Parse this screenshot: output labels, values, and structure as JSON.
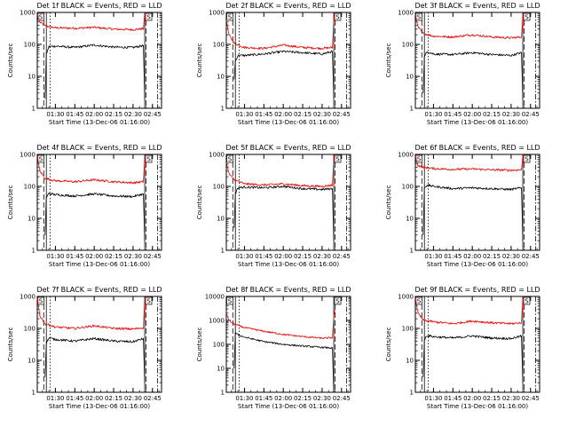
{
  "page": {
    "background": "#ffffff"
  },
  "colors": {
    "events": "#000000",
    "lld": "#ff0000",
    "axis": "#000000"
  },
  "chart_data": [
    {
      "type": "line",
      "title": "Det 1f BLACK = Events, RED = LLD",
      "ylabel": "Counts/sec",
      "xlabel": "Start Time (13-Dec-06 01:16:00)",
      "yscale": "log",
      "ylim": [
        1,
        1000
      ],
      "xlim": [
        "01:16",
        "02:52"
      ],
      "xticks": [
        "01:30",
        "01:45",
        "02:00",
        "02:15",
        "02:30",
        "02:45"
      ],
      "yticks": [
        "1",
        "10",
        "100",
        "1000"
      ],
      "markers": [
        "S",
        "S"
      ],
      "series": [
        {
          "color": "#ff0000",
          "x": [
            "01:16",
            "01:18",
            "01:22",
            "01:30",
            "01:45",
            "02:00",
            "02:15",
            "02:30",
            "02:38",
            "02:39",
            "02:40"
          ],
          "y": [
            900,
            500,
            380,
            330,
            320,
            340,
            300,
            290,
            310,
            900,
            1000
          ]
        },
        {
          "color": "#000000",
          "x": [
            "01:22",
            "01:23",
            "01:25",
            "01:30",
            "01:45",
            "02:00",
            "02:15",
            "02:30",
            "02:38",
            "02:39"
          ],
          "y": [
            2,
            50,
            85,
            88,
            80,
            95,
            82,
            80,
            92,
            2
          ]
        }
      ]
    },
    {
      "type": "line",
      "title": "Det 2f BLACK = Events, RED = LLD",
      "ylabel": "Counts/sec",
      "xlabel": "Start Time (13-Dec-06 01:16:00)",
      "yscale": "log",
      "ylim": [
        1,
        1000
      ],
      "xlim": [
        "01:16",
        "02:52"
      ],
      "xticks": [
        "01:30",
        "01:45",
        "02:00",
        "02:15",
        "02:30",
        "02:45"
      ],
      "yticks": [
        "1",
        "10",
        "100",
        "1000"
      ],
      "markers": [
        "S",
        "S"
      ],
      "series": [
        {
          "color": "#ff0000",
          "x": [
            "01:16",
            "01:18",
            "01:22",
            "01:30",
            "01:45",
            "02:00",
            "02:15",
            "02:30",
            "02:38",
            "02:39",
            "02:40"
          ],
          "y": [
            600,
            200,
            110,
            80,
            75,
            95,
            80,
            75,
            80,
            600,
            1000
          ]
        },
        {
          "color": "#000000",
          "x": [
            "01:22",
            "01:23",
            "01:25",
            "01:30",
            "01:45",
            "02:00",
            "02:15",
            "02:30",
            "02:38",
            "02:39"
          ],
          "y": [
            8,
            30,
            45,
            45,
            50,
            60,
            55,
            50,
            60,
            2
          ]
        }
      ]
    },
    {
      "type": "line",
      "title": "Det 3f BLACK = Events, RED = LLD",
      "ylabel": "Counts/sec",
      "xlabel": "Start Time (13-Dec-06 01:16:00)",
      "yscale": "log",
      "ylim": [
        1,
        1000
      ],
      "xlim": [
        "01:16",
        "02:52"
      ],
      "xticks": [
        "01:30",
        "01:45",
        "02:00",
        "02:15",
        "02:30",
        "02:45"
      ],
      "yticks": [
        "1",
        "10",
        "100",
        "1000"
      ],
      "markers": [
        "S",
        "S"
      ],
      "series": [
        {
          "color": "#ff0000",
          "x": [
            "01:16",
            "01:18",
            "01:22",
            "01:30",
            "01:45",
            "02:00",
            "02:15",
            "02:30",
            "02:38",
            "02:39",
            "02:40"
          ],
          "y": [
            900,
            350,
            220,
            180,
            170,
            200,
            170,
            160,
            170,
            800,
            1000
          ]
        },
        {
          "color": "#000000",
          "x": [
            "01:22",
            "01:23",
            "01:25",
            "01:30",
            "01:45",
            "02:00",
            "02:15",
            "02:30",
            "02:38",
            "02:39"
          ],
          "y": [
            3,
            40,
            60,
            50,
            48,
            55,
            48,
            45,
            55,
            2
          ]
        }
      ]
    },
    {
      "type": "line",
      "title": "Det 4f BLACK = Events, RED = LLD",
      "ylabel": "Counts/sec",
      "xlabel": "Start Time (13-Dec-06 01:16:00)",
      "yscale": "log",
      "ylim": [
        1,
        1000
      ],
      "xlim": [
        "01:16",
        "02:52"
      ],
      "xticks": [
        "01:30",
        "01:45",
        "02:00",
        "02:15",
        "02:30",
        "02:45"
      ],
      "yticks": [
        "1",
        "10",
        "100",
        "1000"
      ],
      "markers": [
        "S",
        "S"
      ],
      "series": [
        {
          "color": "#ff0000",
          "x": [
            "01:16",
            "01:18",
            "01:22",
            "01:30",
            "01:45",
            "02:00",
            "02:15",
            "02:30",
            "02:38",
            "02:39",
            "02:40"
          ],
          "y": [
            900,
            300,
            180,
            150,
            140,
            160,
            140,
            130,
            140,
            800,
            1000
          ]
        },
        {
          "color": "#000000",
          "x": [
            "01:22",
            "01:23",
            "01:25",
            "01:30",
            "01:45",
            "02:00",
            "02:15",
            "02:30",
            "02:38",
            "02:39"
          ],
          "y": [
            3,
            45,
            60,
            55,
            50,
            58,
            50,
            48,
            58,
            2
          ]
        }
      ]
    },
    {
      "type": "line",
      "title": "Det 5f BLACK = Events, RED = LLD",
      "ylabel": "Counts/sec",
      "xlabel": "Start Time (13-Dec-06 01:16:00)",
      "yscale": "log",
      "ylim": [
        1,
        1000
      ],
      "xlim": [
        "01:16",
        "02:52"
      ],
      "xticks": [
        "01:30",
        "01:45",
        "02:00",
        "02:15",
        "02:30",
        "02:45"
      ],
      "yticks": [
        "1",
        "10",
        "100",
        "1000"
      ],
      "markers": [
        "S",
        "S"
      ],
      "series": [
        {
          "color": "#ff0000",
          "x": [
            "01:16",
            "01:18",
            "01:22",
            "01:30",
            "01:45",
            "02:00",
            "02:15",
            "02:30",
            "02:38",
            "02:39",
            "02:40"
          ],
          "y": [
            600,
            250,
            160,
            120,
            110,
            120,
            105,
            100,
            110,
            700,
            1000
          ]
        },
        {
          "color": "#000000",
          "x": [
            "01:22",
            "01:23",
            "01:25",
            "01:30",
            "01:45",
            "02:00",
            "02:15",
            "02:30",
            "02:38",
            "02:39"
          ],
          "y": [
            5,
            60,
            90,
            95,
            90,
            100,
            85,
            80,
            85,
            2
          ]
        }
      ]
    },
    {
      "type": "line",
      "title": "Det 6f BLACK = Events, RED = LLD",
      "ylabel": "Counts/sec",
      "xlabel": "Start Time (13-Dec-06 01:16:00)",
      "yscale": "log",
      "ylim": [
        1,
        1000
      ],
      "xlim": [
        "01:16",
        "02:52"
      ],
      "xticks": [
        "01:30",
        "01:45",
        "02:00",
        "02:15",
        "02:30",
        "02:45"
      ],
      "yticks": [
        "1",
        "10",
        "100",
        "1000"
      ],
      "markers": [
        "S",
        "S"
      ],
      "series": [
        {
          "color": "#ff0000",
          "x": [
            "01:16",
            "01:18",
            "01:22",
            "01:30",
            "01:45",
            "02:00",
            "02:15",
            "02:30",
            "02:38",
            "02:39",
            "02:40"
          ],
          "y": [
            900,
            450,
            400,
            360,
            340,
            350,
            330,
            320,
            330,
            900,
            1000
          ]
        },
        {
          "color": "#000000",
          "x": [
            "01:22",
            "01:23",
            "01:25",
            "01:30",
            "01:45",
            "02:00",
            "02:15",
            "02:30",
            "02:38",
            "02:39"
          ],
          "y": [
            3,
            90,
            110,
            100,
            85,
            90,
            85,
            80,
            90,
            2
          ]
        }
      ]
    },
    {
      "type": "line",
      "title": "Det 7f BLACK = Events, RED = LLD",
      "ylabel": "Counts/sec",
      "xlabel": "Start Time (13-Dec-06 01:16:00)",
      "yscale": "log",
      "ylim": [
        1,
        1000
      ],
      "xlim": [
        "01:16",
        "02:52"
      ],
      "xticks": [
        "01:30",
        "01:45",
        "02:00",
        "02:15",
        "02:30",
        "02:45"
      ],
      "yticks": [
        "1",
        "10",
        "100",
        "1000"
      ],
      "markers": [
        "S",
        "S"
      ],
      "series": [
        {
          "color": "#ff0000",
          "x": [
            "01:16",
            "01:18",
            "01:22",
            "01:30",
            "01:45",
            "02:00",
            "02:15",
            "02:30",
            "02:38",
            "02:39",
            "02:40"
          ],
          "y": [
            900,
            250,
            140,
            110,
            100,
            120,
            100,
            95,
            105,
            800,
            1000
          ]
        },
        {
          "color": "#000000",
          "x": [
            "01:22",
            "01:23",
            "01:25",
            "01:30",
            "01:45",
            "02:00",
            "02:15",
            "02:30",
            "02:38",
            "02:39"
          ],
          "y": [
            3,
            35,
            50,
            45,
            40,
            48,
            40,
            38,
            48,
            2
          ]
        }
      ]
    },
    {
      "type": "line",
      "title": "Det 8f BLACK = Events, RED = LLD",
      "ylabel": "Counts/sec",
      "xlabel": "Start Time (13-Dec-06 01:16:00)",
      "yscale": "log",
      "ylim": [
        1,
        10000
      ],
      "xlim": [
        "01:16",
        "02:52"
      ],
      "xticks": [
        "01:30",
        "01:45",
        "02:00",
        "02:15",
        "02:30",
        "02:45"
      ],
      "yticks": [
        "1",
        "10",
        "100",
        "1000",
        "10000"
      ],
      "markers": [
        "S",
        "S"
      ],
      "series": [
        {
          "color": "#ff0000",
          "x": [
            "01:16",
            "01:18",
            "01:22",
            "01:30",
            "01:45",
            "02:00",
            "02:15",
            "02:30",
            "02:38",
            "02:39",
            "02:40"
          ],
          "y": [
            2000,
            1000,
            700,
            500,
            350,
            260,
            210,
            180,
            190,
            1500,
            3000
          ]
        },
        {
          "color": "#000000",
          "x": [
            "01:22",
            "01:23",
            "01:25",
            "01:30",
            "01:45",
            "02:00",
            "02:15",
            "02:30",
            "02:38",
            "02:39"
          ],
          "y": [
            10,
            300,
            250,
            200,
            130,
            100,
            85,
            75,
            70,
            1
          ]
        }
      ]
    },
    {
      "type": "line",
      "title": "Det 9f BLACK = Events, RED = LLD",
      "ylabel": "Counts/sec",
      "xlabel": "Start Time (13-Dec-06 01:16:00)",
      "yscale": "log",
      "ylim": [
        1,
        1000
      ],
      "xlim": [
        "01:16",
        "02:52"
      ],
      "xticks": [
        "01:30",
        "01:45",
        "02:00",
        "02:15",
        "02:30",
        "02:45"
      ],
      "yticks": [
        "1",
        "10",
        "100",
        "1000"
      ],
      "markers": [
        "S",
        "S"
      ],
      "series": [
        {
          "color": "#ff0000",
          "x": [
            "01:16",
            "01:18",
            "01:22",
            "01:30",
            "01:45",
            "02:00",
            "02:15",
            "02:30",
            "02:38",
            "02:39",
            "02:40"
          ],
          "y": [
            900,
            300,
            180,
            160,
            140,
            170,
            150,
            140,
            150,
            800,
            1000
          ]
        },
        {
          "color": "#000000",
          "x": [
            "01:22",
            "01:23",
            "01:25",
            "01:30",
            "01:45",
            "02:00",
            "02:15",
            "02:30",
            "02:38",
            "02:39"
          ],
          "y": [
            3,
            45,
            60,
            55,
            50,
            58,
            50,
            48,
            58,
            2
          ]
        }
      ]
    }
  ]
}
